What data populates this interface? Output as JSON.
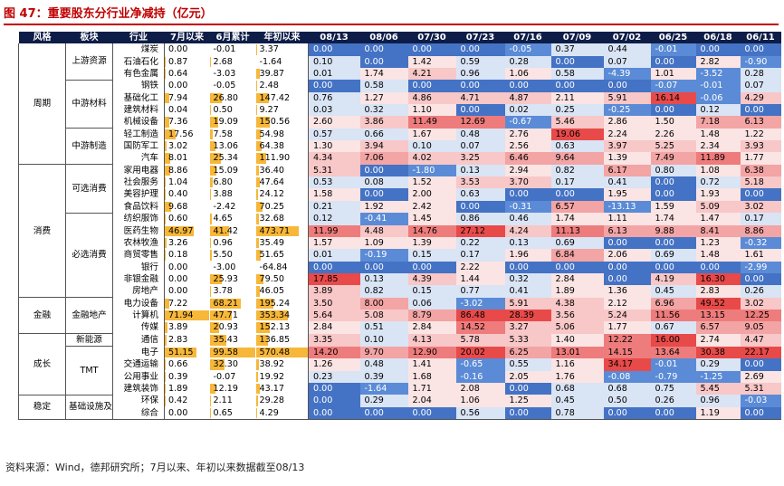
{
  "title": "图 47：重要股东分行业净减持（亿元）",
  "source": "资料来源：Wind，德邦研究所；7月以来、年初以来数据截至08/13",
  "headers": [
    "风格",
    "板块",
    "行业",
    "7月以来",
    "6月累计",
    "年初以来",
    "08/13",
    "08/06",
    "07/30",
    "07/23",
    "07/16",
    "07/09",
    "07/02",
    "06/25",
    "06/18",
    "06/11"
  ],
  "styles": [
    {
      "name": "周期",
      "rows": 10
    },
    {
      "name": "消费",
      "rows": 11
    },
    {
      "name": "金融",
      "rows": 3
    },
    {
      "name": "成长",
      "rows": 5
    },
    {
      "name": "稳定",
      "rows": 3
    },
    {
      "name": "其它",
      "rows": 2
    }
  ],
  "sectors": [
    {
      "name": "上游资源",
      "rows": 3
    },
    {
      "name": "中游材料",
      "rows": 4
    },
    {
      "name": "中游制造",
      "rows": 3
    },
    {
      "name": "可选消费",
      "rows": 4
    },
    {
      "name": "必选消费",
      "rows": 7
    },
    {
      "name": "金融地产",
      "rows": 3
    },
    {
      "name": "新能源",
      "rows": 1
    },
    {
      "name": "TMT",
      "rows": 4
    },
    {
      "name": "基础设施及运营",
      "rows": 3
    },
    {
      "name": "环保综合",
      "rows": 2
    }
  ],
  "rows": [
    {
      "ind": "煤炭",
      "a": "0.00",
      "b": "-0.01",
      "c": "3.37",
      "w": [
        "0.00",
        "0.00",
        "0.00",
        "0.00",
        "-0.05",
        "0.37",
        "0.44",
        "-0.01",
        "0.00",
        "0.00"
      ]
    },
    {
      "ind": "石油石化",
      "a": "0.87",
      "b": "2.68",
      "c": "-1.64",
      "w": [
        "0.10",
        "0.00",
        "1.42",
        "0.59",
        "0.28",
        "0.00",
        "0.07",
        "0.00",
        "2.82",
        "-0.90"
      ]
    },
    {
      "ind": "有色金属",
      "a": "0.64",
      "b": "-3.03",
      "c": "39.87",
      "w": [
        "0.01",
        "1.74",
        "4.21",
        "0.96",
        "1.06",
        "0.58",
        "-4.39",
        "1.01",
        "-3.52",
        "0.28"
      ]
    },
    {
      "ind": "钢铁",
      "a": "0.00",
      "b": "-0.05",
      "c": "2.48",
      "w": [
        "0.00",
        "0.58",
        "0.00",
        "0.00",
        "0.00",
        "0.00",
        "0.00",
        "-0.07",
        "-0.01",
        "0.07"
      ]
    },
    {
      "ind": "基础化工",
      "a": "7.94",
      "b": "26.80",
      "c": "147.42",
      "w": [
        "0.76",
        "1.27",
        "4.86",
        "4.71",
        "4.87",
        "2.11",
        "5.91",
        "16.14",
        "-0.06",
        "4.29"
      ]
    },
    {
      "ind": "建筑材料",
      "a": "0.04",
      "b": "0.50",
      "c": "9.27",
      "w": [
        "0.03",
        "0.32",
        "1.10",
        "0.00",
        "0.02",
        "0.25",
        "-0.25",
        "0.00",
        "0.12",
        "0.00"
      ]
    },
    {
      "ind": "机械设备",
      "a": "7.36",
      "b": "19.09",
      "c": "150.56",
      "w": [
        "2.60",
        "3.86",
        "11.49",
        "12.69",
        "-0.67",
        "5.46",
        "2.86",
        "1.50",
        "7.18",
        "6.13"
      ]
    },
    {
      "ind": "轻工制造",
      "a": "17.56",
      "b": "7.58",
      "c": "54.98",
      "w": [
        "0.57",
        "0.66",
        "1.67",
        "0.48",
        "2.76",
        "19.06",
        "2.24",
        "2.26",
        "1.48",
        "1.22"
      ]
    },
    {
      "ind": "国防军工",
      "a": "3.02",
      "b": "13.06",
      "c": "64.38",
      "w": [
        "1.30",
        "3.94",
        "0.10",
        "0.07",
        "2.56",
        "0.63",
        "3.97",
        "5.25",
        "2.34",
        "3.93"
      ]
    },
    {
      "ind": "电力设备",
      "a": "0.00",
      "b": "0.00",
      "c": "0.00",
      "skip": true,
      "w": []
    },
    {
      "ind": "汽车",
      "a": "8.01",
      "b": "25.34",
      "c": "111.90",
      "w": [
        "4.34",
        "7.06",
        "4.02",
        "3.25",
        "6.46",
        "9.64",
        "1.39",
        "7.49",
        "11.89",
        "1.77"
      ]
    },
    {
      "ind": "家用电器",
      "a": "8.86",
      "b": "15.09",
      "c": "36.40",
      "w": [
        "5.31",
        "0.00",
        "-1.80",
        "0.13",
        "2.94",
        "0.82",
        "6.17",
        "0.80",
        "1.08",
        "6.38"
      ]
    },
    {
      "ind": "社会服务",
      "a": "1.04",
      "b": "6.80",
      "c": "47.64",
      "w": [
        "0.53",
        "0.08",
        "1.52",
        "3.53",
        "3.70",
        "0.17",
        "0.41",
        "0.00",
        "0.72",
        "5.18"
      ]
    },
    {
      "ind": "美容护理",
      "a": "0.40",
      "b": "3.88",
      "c": "24.12",
      "w": [
        "1.58",
        "0.00",
        "2.00",
        "0.63",
        "0.00",
        "0.00",
        "1.95",
        "0.00",
        "1.93",
        "0.00"
      ]
    },
    {
      "ind": "食品饮料",
      "a": "9.68",
      "b": "-2.42",
      "c": "70.25",
      "w": [
        "0.21",
        "1.92",
        "2.42",
        "0.00",
        "-0.31",
        "6.57",
        "-13.13",
        "1.59",
        "5.09",
        "3.02"
      ]
    },
    {
      "ind": "纺织服饰",
      "a": "0.60",
      "b": "4.65",
      "c": "32.68",
      "w": [
        "0.12",
        "-0.41",
        "1.45",
        "0.86",
        "0.46",
        "1.74",
        "1.11",
        "1.74",
        "1.47",
        "0.17"
      ]
    },
    {
      "ind": "医药生物",
      "a": "46.97",
      "b": "41.42",
      "c": "473.71",
      "w": [
        "11.99",
        "4.48",
        "14.76",
        "27.12",
        "4.24",
        "11.13",
        "6.13",
        "9.88",
        "8.41",
        "8.86"
      ]
    },
    {
      "ind": "农林牧渔",
      "a": "3.26",
      "b": "0.96",
      "c": "35.49",
      "w": [
        "1.57",
        "1.09",
        "1.39",
        "0.22",
        "0.13",
        "0.69",
        "0.00",
        "0.00",
        "1.23",
        "-0.32"
      ]
    },
    {
      "ind": "商贸零售",
      "a": "0.18",
      "b": "5.50",
      "c": "51.65",
      "w": [
        "0.01",
        "-0.19",
        "0.15",
        "0.17",
        "1.96",
        "6.84",
        "2.06",
        "0.69",
        "1.48",
        "1.61"
      ]
    },
    {
      "ind": "银行",
      "a": "0.00",
      "b": "-3.00",
      "c": "-64.84",
      "w": [
        "0.00",
        "0.00",
        "0.00",
        "2.22",
        "0.00",
        "0.00",
        "0.00",
        "0.00",
        "0.00",
        "-2.99"
      ]
    },
    {
      "ind": "非银金融",
      "a": "0.00",
      "b": "25.93",
      "c": "79.50",
      "w": [
        "17.85",
        "0.13",
        "4.39",
        "1.44",
        "0.32",
        "2.84",
        "0.00",
        "4.19",
        "16.30",
        "0.00"
      ]
    },
    {
      "ind": "房地产",
      "a": "0.00",
      "b": "3.78",
      "c": "46.05",
      "w": [
        "3.89",
        "0.82",
        "0.15",
        "0.77",
        "0.41",
        "1.89",
        "1.36",
        "0.45",
        "2.83",
        "0.26"
      ]
    },
    {
      "ind": "电力设备",
      "a": "7.22",
      "b": "68.21",
      "c": "195.24",
      "w": [
        "3.50",
        "8.00",
        "0.06",
        "-3.02",
        "5.91",
        "4.38",
        "2.12",
        "6.96",
        "49.52",
        "3.02"
      ]
    },
    {
      "ind": "计算机",
      "a": "71.94",
      "b": "47.71",
      "c": "353.34",
      "w": [
        "5.64",
        "5.08",
        "8.79",
        "86.48",
        "28.39",
        "3.56",
        "5.24",
        "11.56",
        "13.15",
        "12.25"
      ]
    },
    {
      "ind": "传媒",
      "a": "3.89",
      "b": "20.93",
      "c": "152.13",
      "w": [
        "2.84",
        "0.51",
        "2.84",
        "14.52",
        "3.27",
        "5.06",
        "1.77",
        "0.67",
        "6.57",
        "9.05"
      ]
    },
    {
      "ind": "通信",
      "a": "2.83",
      "b": "35.43",
      "c": "136.85",
      "w": [
        "3.35",
        "0.10",
        "4.13",
        "5.78",
        "5.33",
        "1.40",
        "12.22",
        "16.00",
        "2.74",
        "4.47"
      ]
    },
    {
      "ind": "电子",
      "a": "51.15",
      "b": "99.58",
      "c": "570.48",
      "w": [
        "14.20",
        "9.70",
        "12.90",
        "20.02",
        "6.25",
        "13.01",
        "14.15",
        "13.64",
        "30.38",
        "22.17"
      ]
    },
    {
      "ind": "交通运输",
      "a": "0.66",
      "b": "32.30",
      "c": "38.92",
      "w": [
        "1.26",
        "0.48",
        "1.41",
        "-0.65",
        "0.55",
        "1.16",
        "34.17",
        "-0.01",
        "0.29",
        "0.00"
      ]
    },
    {
      "ind": "公用事业",
      "a": "0.39",
      "b": "-0.07",
      "c": "19.92",
      "w": [
        "0.23",
        "0.39",
        "1.68",
        "-0.16",
        "2.05",
        "1.76",
        "-0.08",
        "-0.79",
        "-1.25",
        "2.69"
      ]
    },
    {
      "ind": "建筑装饰",
      "a": "1.89",
      "b": "12.19",
      "c": "43.17",
      "w": [
        "0.00",
        "-1.64",
        "1.71",
        "2.08",
        "0.00",
        "0.68",
        "0.68",
        "0.75",
        "5.45",
        "5.31"
      ]
    },
    {
      "ind": "环保",
      "a": "0.42",
      "b": "2.11",
      "c": "29.28",
      "w": [
        "0.00",
        "0.29",
        "2.04",
        "1.06",
        "1.25",
        "0.45",
        "0.50",
        "0.26",
        "0.96",
        "-0.03"
      ]
    },
    {
      "ind": "综合",
      "a": "0.00",
      "b": "0.65",
      "c": "4.29",
      "w": [
        "0.00",
        "0.00",
        "0.00",
        "0.56",
        "0.00",
        "0.78",
        "0.00",
        "0.00",
        "1.19",
        "0.00"
      ]
    }
  ]
}
